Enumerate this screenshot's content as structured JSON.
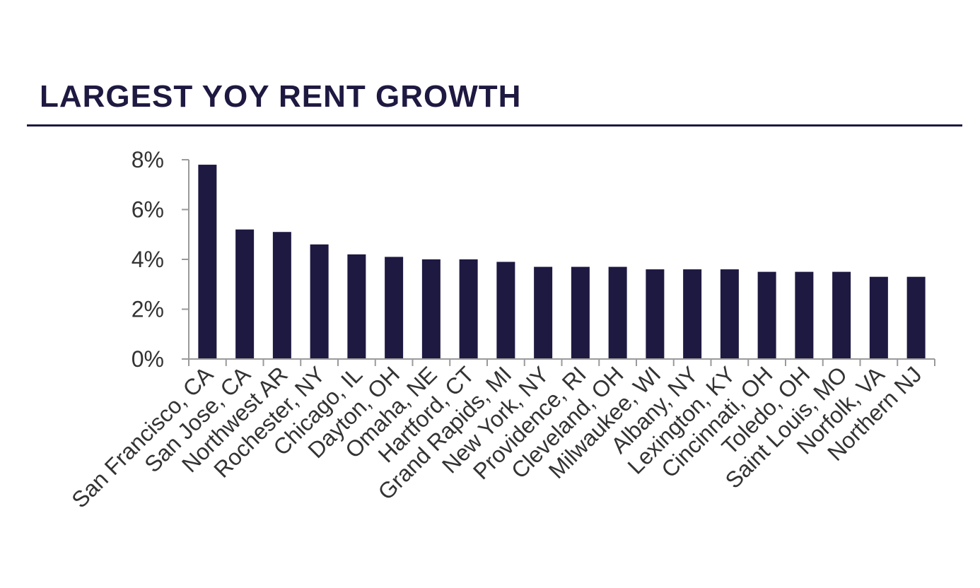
{
  "chart_data": {
    "type": "bar",
    "title": "LARGEST YOY RENT GROWTH",
    "xlabel": "",
    "ylabel": "",
    "ylim": [
      0,
      8
    ],
    "yticks": [
      0,
      2,
      4,
      6,
      8
    ],
    "ytick_labels": [
      "0%",
      "2%",
      "4%",
      "6%",
      "8%"
    ],
    "grid": false,
    "legend": "none",
    "categories": [
      "San Francisco, CA",
      "San Jose, CA",
      "Northwest AR",
      "Rochester, NY",
      "Chicago, IL",
      "Dayton, OH",
      "Omaha, NE",
      "Hartford, CT",
      "Grand Rapids, MI",
      "New York, NY",
      "Providence, RI",
      "Cleveland, OH",
      "Milwaukee, WI",
      "Albany, NY",
      "Lexington, KY",
      "Cincinnati, OH",
      "Toledo, OH",
      "Saint Louis, MO",
      "Norfolk, VA",
      "Northern NJ"
    ],
    "values": [
      7.8,
      5.2,
      5.1,
      4.6,
      4.2,
      4.1,
      4.0,
      4.0,
      3.9,
      3.7,
      3.7,
      3.7,
      3.6,
      3.6,
      3.6,
      3.5,
      3.5,
      3.5,
      3.3,
      3.3
    ],
    "colors": {
      "bar": "#1e1941",
      "axis": "#9a9a9a",
      "tick_text": "#333333",
      "title": "#1e1941"
    }
  }
}
